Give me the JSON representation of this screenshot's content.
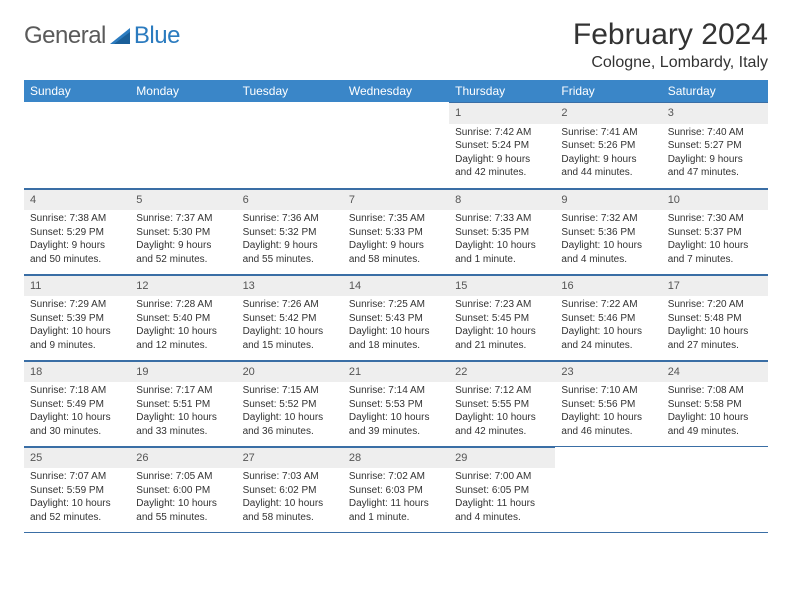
{
  "logo": {
    "general": "General",
    "blue": "Blue"
  },
  "title": "February 2024",
  "location": "Cologne, Lombardy, Italy",
  "colors": {
    "header_bg": "#3a86c8",
    "header_text": "#ffffff",
    "daynum_bg": "#eeeeee",
    "rule": "#3a6ea5",
    "logo_gray": "#5a5a5a",
    "logo_blue": "#2b7bbf"
  },
  "weekdays": [
    "Sunday",
    "Monday",
    "Tuesday",
    "Wednesday",
    "Thursday",
    "Friday",
    "Saturday"
  ],
  "leading_blanks": 4,
  "days": [
    {
      "n": "1",
      "sr": "Sunrise: 7:42 AM",
      "ss": "Sunset: 5:24 PM",
      "dl": "Daylight: 9 hours and 42 minutes."
    },
    {
      "n": "2",
      "sr": "Sunrise: 7:41 AM",
      "ss": "Sunset: 5:26 PM",
      "dl": "Daylight: 9 hours and 44 minutes."
    },
    {
      "n": "3",
      "sr": "Sunrise: 7:40 AM",
      "ss": "Sunset: 5:27 PM",
      "dl": "Daylight: 9 hours and 47 minutes."
    },
    {
      "n": "4",
      "sr": "Sunrise: 7:38 AM",
      "ss": "Sunset: 5:29 PM",
      "dl": "Daylight: 9 hours and 50 minutes."
    },
    {
      "n": "5",
      "sr": "Sunrise: 7:37 AM",
      "ss": "Sunset: 5:30 PM",
      "dl": "Daylight: 9 hours and 52 minutes."
    },
    {
      "n": "6",
      "sr": "Sunrise: 7:36 AM",
      "ss": "Sunset: 5:32 PM",
      "dl": "Daylight: 9 hours and 55 minutes."
    },
    {
      "n": "7",
      "sr": "Sunrise: 7:35 AM",
      "ss": "Sunset: 5:33 PM",
      "dl": "Daylight: 9 hours and 58 minutes."
    },
    {
      "n": "8",
      "sr": "Sunrise: 7:33 AM",
      "ss": "Sunset: 5:35 PM",
      "dl": "Daylight: 10 hours and 1 minute."
    },
    {
      "n": "9",
      "sr": "Sunrise: 7:32 AM",
      "ss": "Sunset: 5:36 PM",
      "dl": "Daylight: 10 hours and 4 minutes."
    },
    {
      "n": "10",
      "sr": "Sunrise: 7:30 AM",
      "ss": "Sunset: 5:37 PM",
      "dl": "Daylight: 10 hours and 7 minutes."
    },
    {
      "n": "11",
      "sr": "Sunrise: 7:29 AM",
      "ss": "Sunset: 5:39 PM",
      "dl": "Daylight: 10 hours and 9 minutes."
    },
    {
      "n": "12",
      "sr": "Sunrise: 7:28 AM",
      "ss": "Sunset: 5:40 PM",
      "dl": "Daylight: 10 hours and 12 minutes."
    },
    {
      "n": "13",
      "sr": "Sunrise: 7:26 AM",
      "ss": "Sunset: 5:42 PM",
      "dl": "Daylight: 10 hours and 15 minutes."
    },
    {
      "n": "14",
      "sr": "Sunrise: 7:25 AM",
      "ss": "Sunset: 5:43 PM",
      "dl": "Daylight: 10 hours and 18 minutes."
    },
    {
      "n": "15",
      "sr": "Sunrise: 7:23 AM",
      "ss": "Sunset: 5:45 PM",
      "dl": "Daylight: 10 hours and 21 minutes."
    },
    {
      "n": "16",
      "sr": "Sunrise: 7:22 AM",
      "ss": "Sunset: 5:46 PM",
      "dl": "Daylight: 10 hours and 24 minutes."
    },
    {
      "n": "17",
      "sr": "Sunrise: 7:20 AM",
      "ss": "Sunset: 5:48 PM",
      "dl": "Daylight: 10 hours and 27 minutes."
    },
    {
      "n": "18",
      "sr": "Sunrise: 7:18 AM",
      "ss": "Sunset: 5:49 PM",
      "dl": "Daylight: 10 hours and 30 minutes."
    },
    {
      "n": "19",
      "sr": "Sunrise: 7:17 AM",
      "ss": "Sunset: 5:51 PM",
      "dl": "Daylight: 10 hours and 33 minutes."
    },
    {
      "n": "20",
      "sr": "Sunrise: 7:15 AM",
      "ss": "Sunset: 5:52 PM",
      "dl": "Daylight: 10 hours and 36 minutes."
    },
    {
      "n": "21",
      "sr": "Sunrise: 7:14 AM",
      "ss": "Sunset: 5:53 PM",
      "dl": "Daylight: 10 hours and 39 minutes."
    },
    {
      "n": "22",
      "sr": "Sunrise: 7:12 AM",
      "ss": "Sunset: 5:55 PM",
      "dl": "Daylight: 10 hours and 42 minutes."
    },
    {
      "n": "23",
      "sr": "Sunrise: 7:10 AM",
      "ss": "Sunset: 5:56 PM",
      "dl": "Daylight: 10 hours and 46 minutes."
    },
    {
      "n": "24",
      "sr": "Sunrise: 7:08 AM",
      "ss": "Sunset: 5:58 PM",
      "dl": "Daylight: 10 hours and 49 minutes."
    },
    {
      "n": "25",
      "sr": "Sunrise: 7:07 AM",
      "ss": "Sunset: 5:59 PM",
      "dl": "Daylight: 10 hours and 52 minutes."
    },
    {
      "n": "26",
      "sr": "Sunrise: 7:05 AM",
      "ss": "Sunset: 6:00 PM",
      "dl": "Daylight: 10 hours and 55 minutes."
    },
    {
      "n": "27",
      "sr": "Sunrise: 7:03 AM",
      "ss": "Sunset: 6:02 PM",
      "dl": "Daylight: 10 hours and 58 minutes."
    },
    {
      "n": "28",
      "sr": "Sunrise: 7:02 AM",
      "ss": "Sunset: 6:03 PM",
      "dl": "Daylight: 11 hours and 1 minute."
    },
    {
      "n": "29",
      "sr": "Sunrise: 7:00 AM",
      "ss": "Sunset: 6:05 PM",
      "dl": "Daylight: 11 hours and 4 minutes."
    }
  ]
}
